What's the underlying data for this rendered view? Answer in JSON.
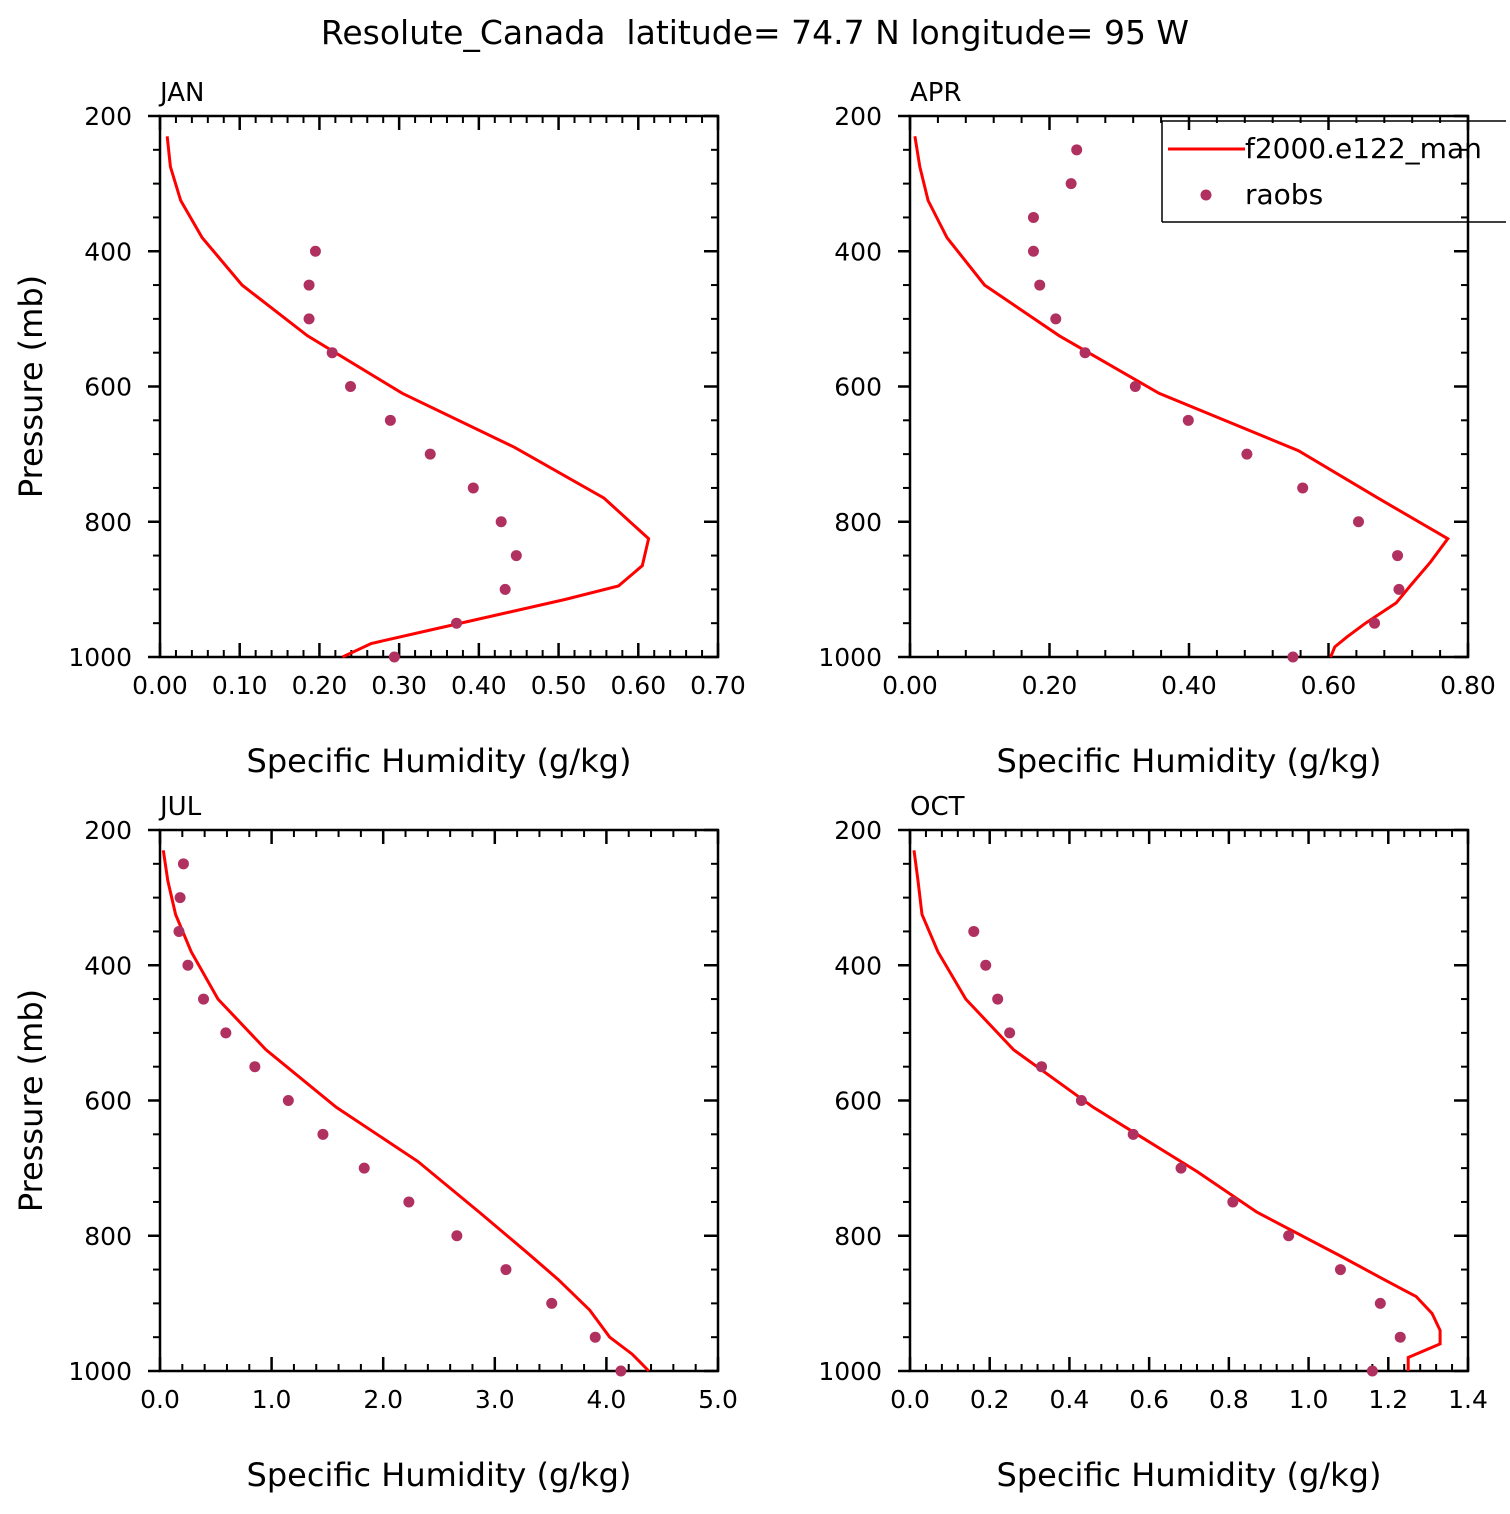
{
  "title": "Resolute_Canada  latitude= 74.7 N longitude= 95 W",
  "legend": {
    "entries": [
      "f2000.e122_man",
      "raobs"
    ],
    "placement": "top-right of APR panel"
  },
  "colors": {
    "model_line": "#ff0000",
    "raobs_points": "#b03060",
    "axes": "#000000"
  },
  "chart_data": [
    {
      "type": "line",
      "panel_label": "JAN",
      "xlabel": "Specific Humidity (g/kg)",
      "ylabel": "Pressure (mb)",
      "xlim": [
        0,
        0.7
      ],
      "ylim": [
        200,
        1000
      ],
      "y_inverted": true,
      "x_ticks": [
        "0.00",
        "0.10",
        "0.20",
        "0.30",
        "0.40",
        "0.50",
        "0.60",
        "0.70"
      ],
      "x_tick_values": [
        0,
        0.1,
        0.2,
        0.3,
        0.4,
        0.5,
        0.6,
        0.7
      ],
      "y_ticks": [
        "200",
        "400",
        "600",
        "800",
        "1000"
      ],
      "y_tick_values": [
        200,
        400,
        600,
        800,
        1000
      ],
      "series": [
        {
          "name": "f2000.e122_man",
          "kind": "line",
          "x": [
            0.009,
            0.013,
            0.026,
            0.053,
            0.103,
            0.185,
            0.304,
            0.445,
            0.557,
            0.613,
            0.605,
            0.575,
            0.508,
            0.34,
            0.265,
            0.229
          ],
          "y": [
            230,
            275,
            325,
            380,
            450,
            525,
            610,
            690,
            765,
            825,
            865,
            895,
            915,
            960,
            980,
            1000
          ]
        },
        {
          "name": "raobs",
          "kind": "scatter",
          "x": [
            0.195,
            0.187,
            0.187,
            0.216,
            0.239,
            0.289,
            0.339,
            0.393,
            0.428,
            0.447,
            0.433,
            0.372,
            0.294
          ],
          "y": [
            400,
            450,
            500,
            550,
            600,
            650,
            700,
            750,
            800,
            850,
            900,
            950,
            1000
          ]
        }
      ]
    },
    {
      "type": "line",
      "panel_label": "APR",
      "xlabel": "Specific Humidity (g/kg)",
      "ylabel": "",
      "xlim": [
        0,
        0.8
      ],
      "ylim": [
        200,
        1000
      ],
      "y_inverted": true,
      "x_ticks": [
        "0.00",
        "0.20",
        "0.40",
        "0.60",
        "0.80"
      ],
      "x_tick_values": [
        0,
        0.2,
        0.4,
        0.6,
        0.8
      ],
      "y_ticks": [
        "200",
        "400",
        "600",
        "800",
        "1000"
      ],
      "y_tick_values": [
        200,
        400,
        600,
        800,
        1000
      ],
      "series": [
        {
          "name": "f2000.e122_man",
          "kind": "line",
          "x": [
            0.007,
            0.014,
            0.026,
            0.053,
            0.107,
            0.214,
            0.357,
            0.557,
            0.671,
            0.771,
            0.746,
            0.717,
            0.697,
            0.653,
            0.627,
            0.609,
            0.603
          ],
          "y": [
            230,
            275,
            325,
            380,
            450,
            525,
            610,
            695,
            765,
            825,
            860,
            895,
            920,
            950,
            970,
            985,
            1000
          ]
        },
        {
          "name": "raobs",
          "kind": "scatter",
          "x": [
            0.239,
            0.231,
            0.177,
            0.177,
            0.186,
            0.209,
            0.251,
            0.323,
            0.399,
            0.483,
            0.563,
            0.643,
            0.699,
            0.701,
            0.666,
            0.549
          ],
          "y": [
            250,
            300,
            350,
            400,
            450,
            500,
            550,
            600,
            650,
            700,
            750,
            800,
            850,
            900,
            950,
            1000
          ]
        }
      ]
    },
    {
      "type": "line",
      "panel_label": "JUL",
      "xlabel": "Specific Humidity (g/kg)",
      "ylabel": "Pressure (mb)",
      "xlim": [
        0,
        5
      ],
      "ylim": [
        200,
        1000
      ],
      "y_inverted": true,
      "x_ticks": [
        "0.0",
        "1.0",
        "2.0",
        "3.0",
        "4.0",
        "5.0"
      ],
      "x_tick_values": [
        0,
        1,
        2,
        3,
        4,
        5
      ],
      "y_ticks": [
        "200",
        "400",
        "600",
        "800",
        "1000"
      ],
      "y_tick_values": [
        200,
        400,
        600,
        800,
        1000
      ],
      "series": [
        {
          "name": "f2000.e122_man",
          "kind": "line",
          "x": [
            0.03,
            0.07,
            0.14,
            0.28,
            0.52,
            0.95,
            1.58,
            2.31,
            2.86,
            3.29,
            3.57,
            3.85,
            4.03,
            4.23,
            4.32,
            4.38
          ],
          "y": [
            230,
            275,
            325,
            380,
            450,
            525,
            610,
            690,
            765,
            825,
            865,
            910,
            950,
            975,
            990,
            1000
          ]
        },
        {
          "name": "raobs",
          "kind": "scatter",
          "x": [
            0.21,
            0.18,
            0.17,
            0.25,
            0.39,
            0.59,
            0.85,
            1.15,
            1.46,
            1.83,
            2.23,
            2.66,
            3.1,
            3.51,
            3.9,
            4.13
          ],
          "y": [
            250,
            300,
            350,
            400,
            450,
            500,
            550,
            600,
            650,
            700,
            750,
            800,
            850,
            900,
            950,
            1000
          ]
        }
      ]
    },
    {
      "type": "line",
      "panel_label": "OCT",
      "xlabel": "Specific Humidity (g/kg)",
      "ylabel": "",
      "xlim": [
        0,
        1.4
      ],
      "ylim": [
        200,
        1000
      ],
      "y_inverted": true,
      "x_ticks": [
        "0.0",
        "0.2",
        "0.4",
        "0.6",
        "0.8",
        "1.0",
        "1.2",
        "1.4"
      ],
      "x_tick_values": [
        0,
        0.2,
        0.4,
        0.6,
        0.8,
        1.0,
        1.2,
        1.4
      ],
      "y_ticks": [
        "200",
        "400",
        "600",
        "800",
        "1000"
      ],
      "y_tick_values": [
        200,
        400,
        600,
        800,
        1000
      ],
      "series": [
        {
          "name": "f2000.e122_man",
          "kind": "line",
          "x": [
            0.01,
            0.02,
            0.03,
            0.07,
            0.14,
            0.26,
            0.46,
            0.72,
            0.87,
            1.08,
            1.19,
            1.27,
            1.31,
            1.33,
            1.33,
            1.25,
            1.25
          ],
          "y": [
            230,
            275,
            325,
            380,
            450,
            525,
            610,
            705,
            765,
            830,
            865,
            890,
            915,
            940,
            960,
            980,
            1000
          ]
        },
        {
          "name": "raobs",
          "kind": "scatter",
          "x": [
            0.16,
            0.19,
            0.22,
            0.25,
            0.33,
            0.43,
            0.56,
            0.68,
            0.81,
            0.95,
            1.08,
            1.18,
            1.23,
            1.16
          ],
          "y": [
            350,
            400,
            450,
            500,
            550,
            600,
            650,
            700,
            750,
            800,
            850,
            900,
            950,
            1000
          ]
        }
      ]
    }
  ]
}
